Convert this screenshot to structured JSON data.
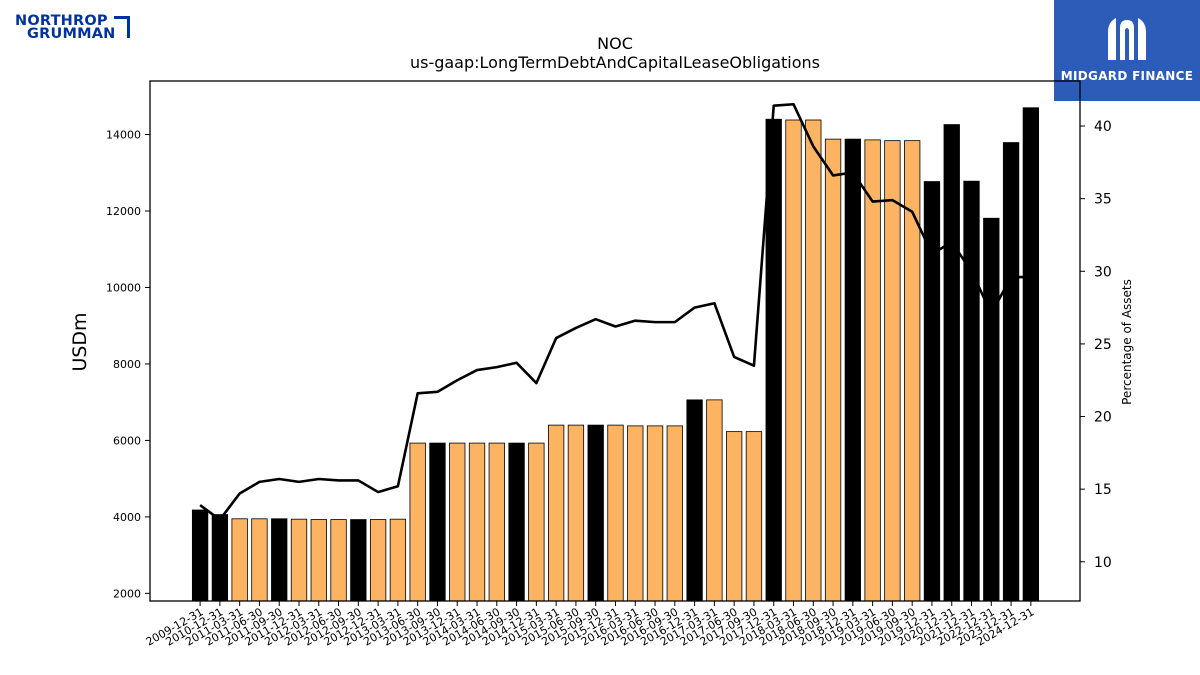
{
  "logos": {
    "left": {
      "line1": "NORTHROP",
      "line2": "GRUMMAN",
      "icon": "northrop-grumman-logo"
    },
    "right": {
      "name": "MIDGARD FINANCE",
      "icon": "midgard-finance-logo"
    }
  },
  "colors": {
    "highlight_bar": "#000000",
    "regular_bar": "#fdb462",
    "line": "#000000"
  },
  "chart_data": {
    "type": "bar",
    "title": "NOC",
    "subtitle": "us-gaap:LongTermDebtAndCapitalLeaseObligations",
    "ylabel": "USDm",
    "y2label": "Percentage of Assets",
    "ylim": [
      1800,
      15400
    ],
    "y2lim": [
      7.3,
      43.1
    ],
    "yticks": [
      2000,
      4000,
      6000,
      8000,
      10000,
      12000,
      14000
    ],
    "y2ticks": [
      10,
      15,
      20,
      25,
      30,
      35,
      40
    ],
    "categories": [
      "2009-12-31",
      "2010-12-31",
      "2011-03-31",
      "2011-06-30",
      "2011-09-30",
      "2011-12-31",
      "2012-03-31",
      "2012-06-30",
      "2012-09-30",
      "2012-12-31",
      "2013-03-31",
      "2013-06-30",
      "2013-09-30",
      "2013-12-31",
      "2014-03-31",
      "2014-06-30",
      "2014-09-30",
      "2014-12-31",
      "2015-03-31",
      "2015-06-30",
      "2015-09-30",
      "2015-12-31",
      "2016-03-31",
      "2016-06-30",
      "2016-09-30",
      "2016-12-31",
      "2017-03-31",
      "2017-06-30",
      "2017-09-30",
      "2017-12-31",
      "2018-03-31",
      "2018-06-30",
      "2018-09-30",
      "2018-12-31",
      "2019-03-31",
      "2019-06-30",
      "2019-09-30",
      "2019-12-31",
      "2020-12-31",
      "2021-12-31",
      "2022-12-31",
      "2023-12-31",
      "2024-12-31"
    ],
    "series": [
      {
        "type": "bar",
        "axis": "left",
        "values": [
          4180,
          4060,
          3950,
          3950,
          3950,
          3940,
          3930,
          3930,
          3930,
          3930,
          3940,
          5930,
          5930,
          5930,
          5930,
          5930,
          5930,
          5930,
          6400,
          6400,
          6400,
          6400,
          6380,
          6380,
          6380,
          7060,
          7060,
          6230,
          6230,
          14400,
          14380,
          14380,
          13880,
          13880,
          13860,
          13840,
          13840,
          12770,
          14260,
          12780,
          11810,
          13790,
          14700
        ],
        "highlight": [
          true,
          true,
          false,
          false,
          true,
          false,
          false,
          false,
          true,
          false,
          false,
          false,
          true,
          false,
          false,
          false,
          true,
          false,
          false,
          false,
          true,
          false,
          false,
          false,
          false,
          true,
          false,
          false,
          false,
          true,
          false,
          false,
          false,
          true,
          false,
          false,
          false,
          true,
          true,
          true,
          true,
          true,
          true
        ]
      },
      {
        "type": "line",
        "axis": "right",
        "values": [
          13.9,
          12.9,
          14.7,
          15.5,
          15.7,
          15.5,
          15.7,
          15.6,
          15.6,
          14.8,
          15.2,
          21.6,
          21.7,
          22.5,
          23.2,
          23.4,
          23.7,
          22.3,
          25.4,
          26.1,
          26.7,
          26.2,
          26.6,
          26.5,
          26.5,
          27.5,
          27.8,
          24.1,
          23.5,
          41.4,
          41.5,
          38.6,
          36.6,
          36.8,
          34.8,
          34.9,
          34.1,
          31.2,
          32.0,
          30.0,
          27.1,
          29.6,
          29.6
        ]
      }
    ]
  }
}
